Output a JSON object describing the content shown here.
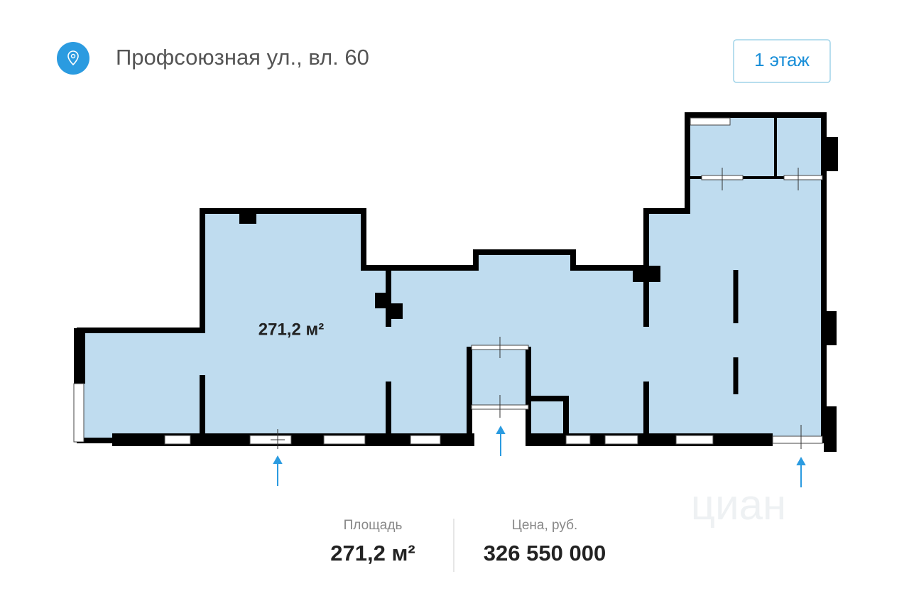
{
  "header": {
    "address": "Профсоюзная ул., вл. 60",
    "floor_button": "1 этаж"
  },
  "plan": {
    "area_label": "271,2 м²",
    "watermark": "циан"
  },
  "summary": {
    "area": {
      "label": "Площадь",
      "value": "271,2 м²"
    },
    "price": {
      "label": "Цена, руб.",
      "value": "326 550 000"
    }
  }
}
